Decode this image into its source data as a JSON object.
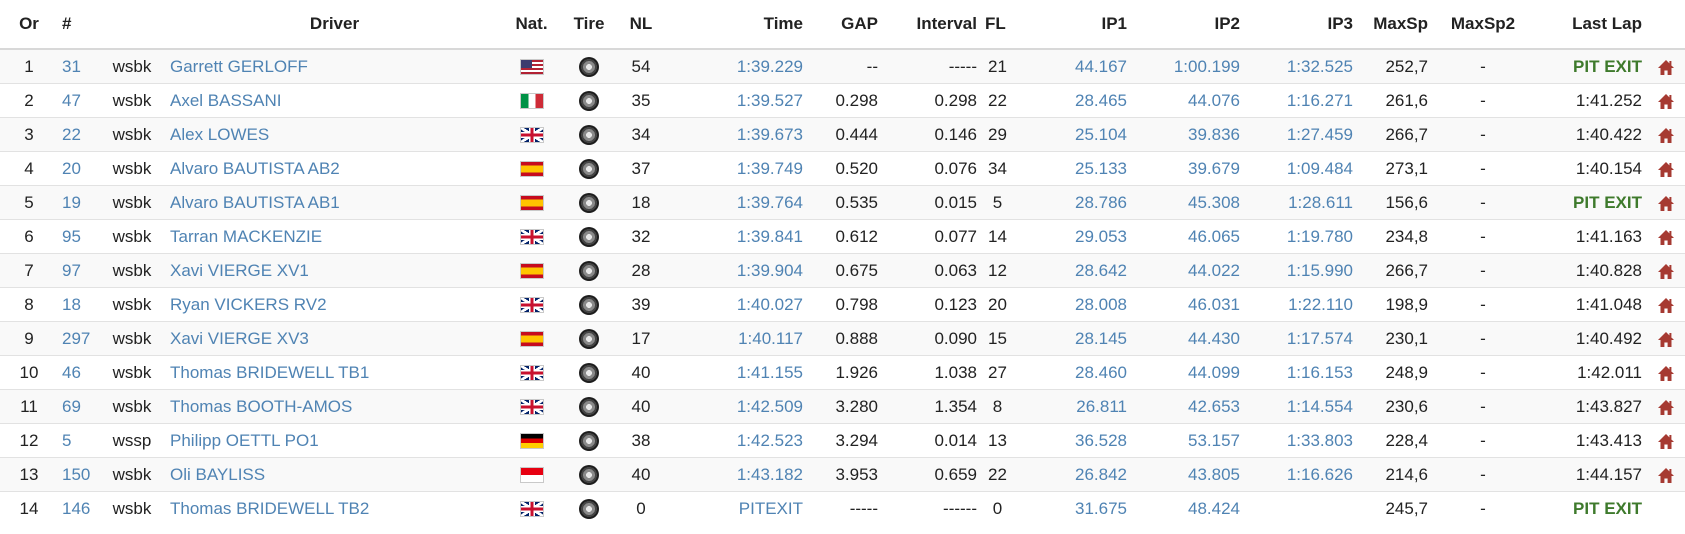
{
  "headers": {
    "or": "Or",
    "num": "#",
    "driver": "Driver",
    "nat": "Nat.",
    "tire": "Tire",
    "nl": "NL",
    "time": "Time",
    "gap": "GAP",
    "interval": "Interval",
    "fl": "FL",
    "ip1": "IP1",
    "ip2": "IP2",
    "ip3": "IP3",
    "maxsp": "MaxSp",
    "maxsp2": "MaxSp2",
    "lastlap": "Last Lap"
  },
  "colors": {
    "link": "#4f83b3",
    "pit_exit": "#3e7a2c",
    "pit_icon": "#a63a32"
  },
  "rows": [
    {
      "or": "1",
      "num": "31",
      "cat": "wsbk",
      "driver": "Garrett GERLOFF",
      "flag": "us",
      "tire": "tire-icon",
      "nl": "54",
      "time": "1:39.229",
      "gap": "--",
      "interval": "-----",
      "fl": "21",
      "ip1": "44.167",
      "ip2": "1:00.199",
      "ip3": "1:32.525",
      "maxsp": "252,7",
      "maxsp2": "-",
      "lastlap": "PIT EXIT",
      "pit": true,
      "pit_icon": true
    },
    {
      "or": "2",
      "num": "47",
      "cat": "wsbk",
      "driver": "Axel BASSANI",
      "flag": "it",
      "tire": "tire-icon",
      "nl": "35",
      "time": "1:39.527",
      "gap": "0.298",
      "interval": "0.298",
      "fl": "22",
      "ip1": "28.465",
      "ip2": "44.076",
      "ip3": "1:16.271",
      "maxsp": "261,6",
      "maxsp2": "-",
      "lastlap": "1:41.252",
      "pit": false,
      "pit_icon": true
    },
    {
      "or": "3",
      "num": "22",
      "cat": "wsbk",
      "driver": "Alex LOWES",
      "flag": "gb",
      "tire": "tire-icon",
      "nl": "34",
      "time": "1:39.673",
      "gap": "0.444",
      "interval": "0.146",
      "fl": "29",
      "ip1": "25.104",
      "ip2": "39.836",
      "ip3": "1:27.459",
      "maxsp": "266,7",
      "maxsp2": "-",
      "lastlap": "1:40.422",
      "pit": false,
      "pit_icon": true
    },
    {
      "or": "4",
      "num": "20",
      "cat": "wsbk",
      "driver": "Alvaro BAUTISTA AB2",
      "flag": "es",
      "tire": "tire-icon",
      "nl": "37",
      "time": "1:39.749",
      "gap": "0.520",
      "interval": "0.076",
      "fl": "34",
      "ip1": "25.133",
      "ip2": "39.679",
      "ip3": "1:09.484",
      "maxsp": "273,1",
      "maxsp2": "-",
      "lastlap": "1:40.154",
      "pit": false,
      "pit_icon": true
    },
    {
      "or": "5",
      "num": "19",
      "cat": "wsbk",
      "driver": "Alvaro BAUTISTA AB1",
      "flag": "es",
      "tire": "tire-icon",
      "nl": "18",
      "time": "1:39.764",
      "gap": "0.535",
      "interval": "0.015",
      "fl": "5",
      "ip1": "28.786",
      "ip2": "45.308",
      "ip3": "1:28.611",
      "maxsp": "156,6",
      "maxsp2": "-",
      "lastlap": "PIT EXIT",
      "pit": true,
      "pit_icon": true
    },
    {
      "or": "6",
      "num": "95",
      "cat": "wsbk",
      "driver": "Tarran MACKENZIE",
      "flag": "gb",
      "tire": "tire-icon",
      "nl": "32",
      "time": "1:39.841",
      "gap": "0.612",
      "interval": "0.077",
      "fl": "14",
      "ip1": "29.053",
      "ip2": "46.065",
      "ip3": "1:19.780",
      "maxsp": "234,8",
      "maxsp2": "-",
      "lastlap": "1:41.163",
      "pit": false,
      "pit_icon": true
    },
    {
      "or": "7",
      "num": "97",
      "cat": "wsbk",
      "driver": "Xavi VIERGE XV1",
      "flag": "es",
      "tire": "tire-icon",
      "nl": "28",
      "time": "1:39.904",
      "gap": "0.675",
      "interval": "0.063",
      "fl": "12",
      "ip1": "28.642",
      "ip2": "44.022",
      "ip3": "1:15.990",
      "maxsp": "266,7",
      "maxsp2": "-",
      "lastlap": "1:40.828",
      "pit": false,
      "pit_icon": true
    },
    {
      "or": "8",
      "num": "18",
      "cat": "wsbk",
      "driver": "Ryan VICKERS RV2",
      "flag": "gb",
      "tire": "tire-icon",
      "nl": "39",
      "time": "1:40.027",
      "gap": "0.798",
      "interval": "0.123",
      "fl": "20",
      "ip1": "28.008",
      "ip2": "46.031",
      "ip3": "1:22.110",
      "maxsp": "198,9",
      "maxsp2": "-",
      "lastlap": "1:41.048",
      "pit": false,
      "pit_icon": true
    },
    {
      "or": "9",
      "num": "297",
      "cat": "wsbk",
      "driver": "Xavi VIERGE XV3",
      "flag": "es",
      "tire": "tire-icon",
      "nl": "17",
      "time": "1:40.117",
      "gap": "0.888",
      "interval": "0.090",
      "fl": "15",
      "ip1": "28.145",
      "ip2": "44.430",
      "ip3": "1:17.574",
      "maxsp": "230,1",
      "maxsp2": "-",
      "lastlap": "1:40.492",
      "pit": false,
      "pit_icon": true
    },
    {
      "or": "10",
      "num": "46",
      "cat": "wsbk",
      "driver": "Thomas BRIDEWELL TB1",
      "flag": "gb",
      "tire": "tire-icon",
      "nl": "40",
      "time": "1:41.155",
      "gap": "1.926",
      "interval": "1.038",
      "fl": "27",
      "ip1": "28.460",
      "ip2": "44.099",
      "ip3": "1:16.153",
      "maxsp": "248,9",
      "maxsp2": "-",
      "lastlap": "1:42.011",
      "pit": false,
      "pit_icon": true
    },
    {
      "or": "11",
      "num": "69",
      "cat": "wsbk",
      "driver": "Thomas BOOTH-AMOS",
      "flag": "gb",
      "tire": "tire-icon",
      "nl": "40",
      "time": "1:42.509",
      "gap": "3.280",
      "interval": "1.354",
      "fl": "8",
      "ip1": "26.811",
      "ip2": "42.653",
      "ip3": "1:14.554",
      "maxsp": "230,6",
      "maxsp2": "-",
      "lastlap": "1:43.827",
      "pit": false,
      "pit_icon": true
    },
    {
      "or": "12",
      "num": "5",
      "cat": "wssp",
      "driver": "Philipp OETTL PO1",
      "flag": "de",
      "tire": "tire-icon",
      "nl": "38",
      "time": "1:42.523",
      "gap": "3.294",
      "interval": "0.014",
      "fl": "13",
      "ip1": "36.528",
      "ip2": "53.157",
      "ip3": "1:33.803",
      "maxsp": "228,4",
      "maxsp2": "-",
      "lastlap": "1:43.413",
      "pit": false,
      "pit_icon": true
    },
    {
      "or": "13",
      "num": "150",
      "cat": "wsbk",
      "driver": "Oli BAYLISS",
      "flag": "id",
      "tire": "tire-icon",
      "nl": "40",
      "time": "1:43.182",
      "gap": "3.953",
      "interval": "0.659",
      "fl": "22",
      "ip1": "26.842",
      "ip2": "43.805",
      "ip3": "1:16.626",
      "maxsp": "214,6",
      "maxsp2": "-",
      "lastlap": "1:44.157",
      "pit": false,
      "pit_icon": true
    },
    {
      "or": "14",
      "num": "146",
      "cat": "wsbk",
      "driver": "Thomas BRIDEWELL TB2",
      "flag": "gb",
      "tire": "tire-icon",
      "nl": "0",
      "time": "PITEXIT",
      "gap": "-----",
      "interval": "------",
      "fl": "0",
      "ip1": "31.675",
      "ip2": "48.424",
      "ip3": "",
      "maxsp": "245,7",
      "maxsp2": "-",
      "lastlap": "PIT EXIT",
      "pit": true,
      "pit_icon": false
    }
  ]
}
